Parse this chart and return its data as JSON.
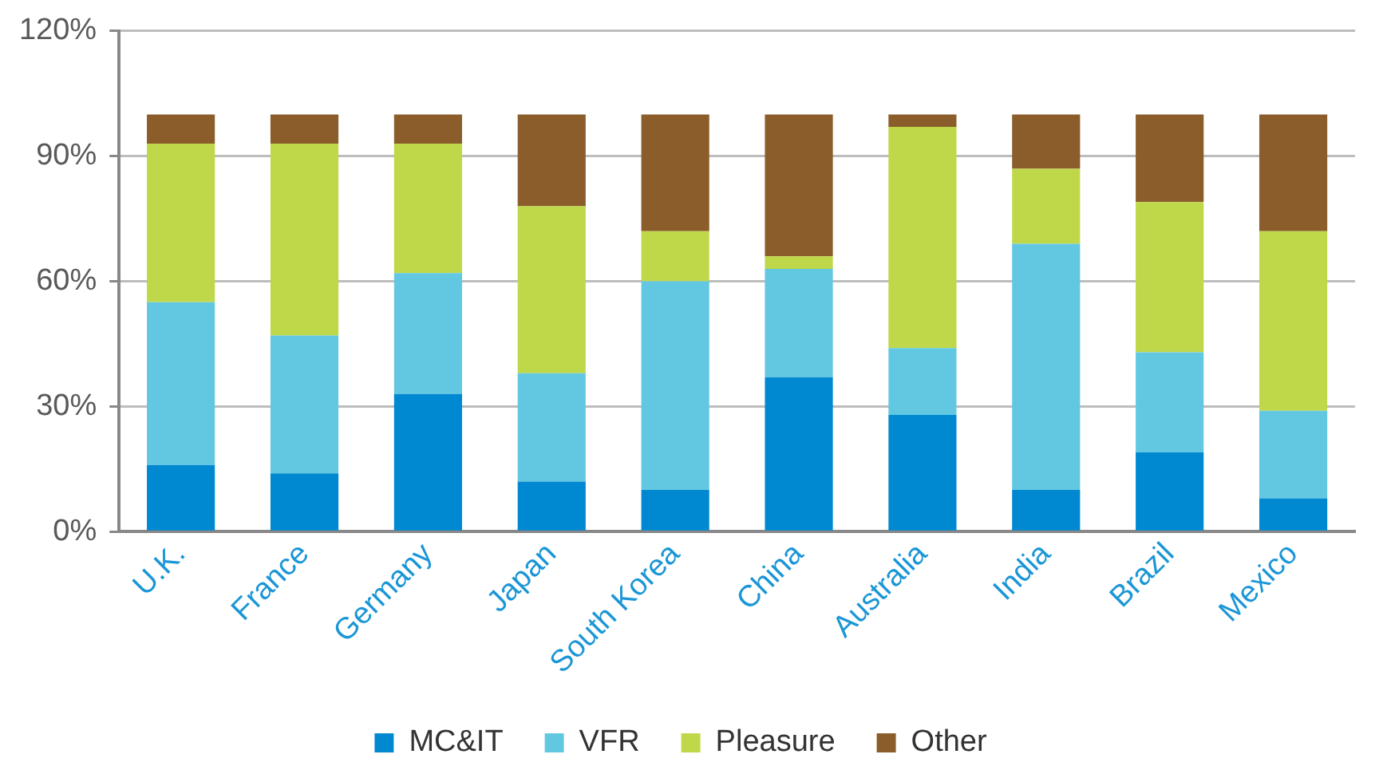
{
  "chart_data": {
    "type": "bar",
    "stacked": true,
    "categories": [
      "U.K.",
      "France",
      "Germany",
      "Japan",
      "South Korea",
      "China",
      "Australia",
      "India",
      "Brazil",
      "Mexico"
    ],
    "series": [
      {
        "name": "MC&IT",
        "color": "#0089d1",
        "values": [
          16,
          14,
          33,
          12,
          10,
          37,
          28,
          10,
          19,
          8
        ]
      },
      {
        "name": "VFR",
        "color": "#62c8e2",
        "values": [
          39,
          33,
          29,
          26,
          50,
          26,
          16,
          59,
          24,
          21
        ]
      },
      {
        "name": "Pleasure",
        "color": "#bfd849",
        "values": [
          38,
          46,
          31,
          40,
          12,
          3,
          53,
          18,
          36,
          43
        ]
      },
      {
        "name": "Other",
        "color": "#8b5d2b",
        "values": [
          7,
          7,
          7,
          22,
          28,
          34,
          3,
          13,
          21,
          28
        ]
      }
    ],
    "ylim": [
      0,
      120
    ],
    "yticks": [
      {
        "value": 0,
        "label": "0%"
      },
      {
        "value": 30,
        "label": "30%"
      },
      {
        "value": 60,
        "label": "60%"
      },
      {
        "value": 90,
        "label": "90%"
      },
      {
        "value": 120,
        "label": "120%"
      }
    ],
    "grid": "y",
    "legend": "bottom"
  }
}
